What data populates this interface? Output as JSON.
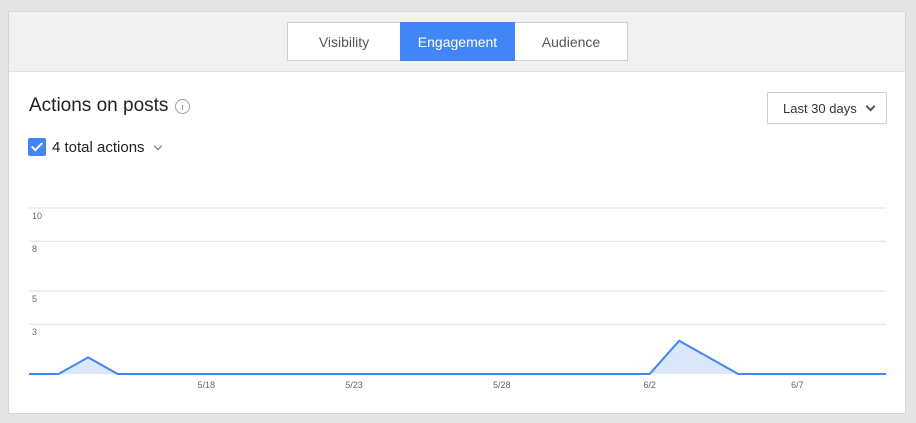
{
  "tabs": [
    {
      "label": "Visibility",
      "active": false
    },
    {
      "label": "Engagement",
      "active": true
    },
    {
      "label": "Audience",
      "active": false
    }
  ],
  "section": {
    "title": "Actions on posts",
    "info_icon": "info-icon"
  },
  "date_range": {
    "label": "Last 30 days",
    "icon": "chevron-down-icon"
  },
  "metric": {
    "checked": true,
    "label": "4 total actions",
    "icon": "chevron-down-icon"
  },
  "colors": {
    "accent": "#4285f4",
    "area_fill": "#dbe7fb",
    "gridline": "#e0e0e0",
    "tick_text": "#666666"
  },
  "chart_data": {
    "type": "area",
    "y_ticks": [
      3,
      5,
      8,
      10
    ],
    "ylim": [
      0,
      10
    ],
    "x_tick_labels": [
      "5/18",
      "5/23",
      "5/28",
      "6/2",
      "6/7"
    ],
    "grid": true,
    "series": [
      {
        "x": [
          "5/12",
          "5/13",
          "5/14",
          "5/15",
          "5/16",
          "5/17",
          "5/18",
          "5/19",
          "5/20",
          "5/21",
          "5/22",
          "5/23",
          "5/24",
          "5/25",
          "5/26",
          "5/27",
          "5/28",
          "5/29",
          "5/30",
          "5/31",
          "6/1",
          "6/2",
          "6/3",
          "6/4",
          "6/5",
          "6/6",
          "6/7",
          "6/8",
          "6/9",
          "6/10"
        ],
        "values": [
          0,
          0,
          1,
          0,
          0,
          0,
          0,
          0,
          0,
          0,
          0,
          0,
          0,
          0,
          0,
          0,
          0,
          0,
          0,
          0,
          0,
          0,
          2,
          1,
          0,
          0,
          0,
          0,
          0,
          0
        ]
      }
    ]
  }
}
